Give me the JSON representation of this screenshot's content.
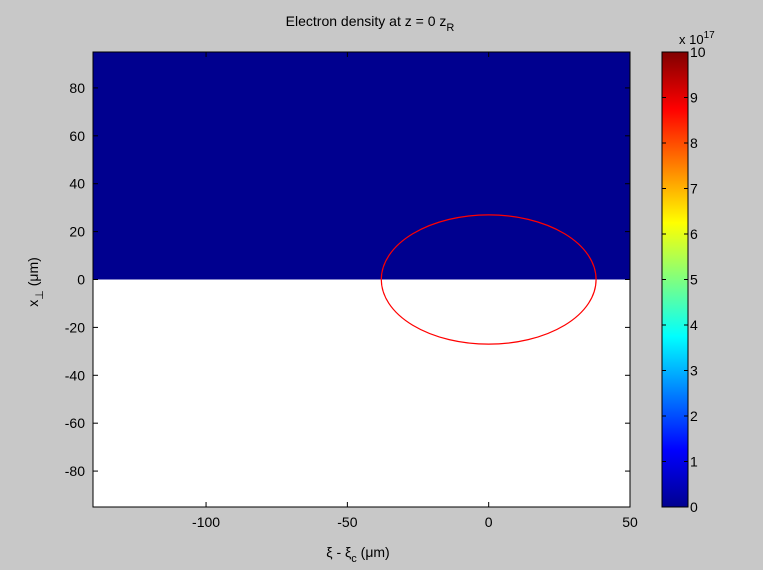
{
  "chart_data": {
    "type": "heatmap",
    "title_main": "Electron density at z = 0 z",
    "title_sub": "R",
    "xlabel": {
      "before": "ξ - ξ",
      "sub": "c",
      "after": " (μm)"
    },
    "ylabel": {
      "before": "x",
      "sub": "⊥",
      "after": " (μm)"
    },
    "xlim": [
      -140,
      50
    ],
    "ylim": [
      -95,
      95
    ],
    "xticks": [
      -100,
      -50,
      0,
      50
    ],
    "yticks": [
      -80,
      -60,
      -40,
      -20,
      0,
      20,
      40,
      60,
      80
    ],
    "regions": [
      {
        "x": [
          -140,
          50
        ],
        "y": [
          0,
          95
        ],
        "density": 0,
        "color": "#00008f"
      },
      {
        "x": [
          -140,
          50
        ],
        "y": [
          -95,
          0
        ],
        "color": "#ffffff"
      }
    ],
    "ellipse": {
      "cx": 0,
      "cy": 0,
      "rx": 38,
      "ry": 27,
      "color": "#ff0000"
    },
    "colorbar": {
      "min": 0,
      "max": 10,
      "ticks": [
        0,
        1,
        2,
        3,
        4,
        5,
        6,
        7,
        8,
        9,
        10
      ],
      "multiplier": {
        "base": "x 10",
        "exp": "17"
      },
      "colormap": "jet"
    },
    "grid": false
  }
}
